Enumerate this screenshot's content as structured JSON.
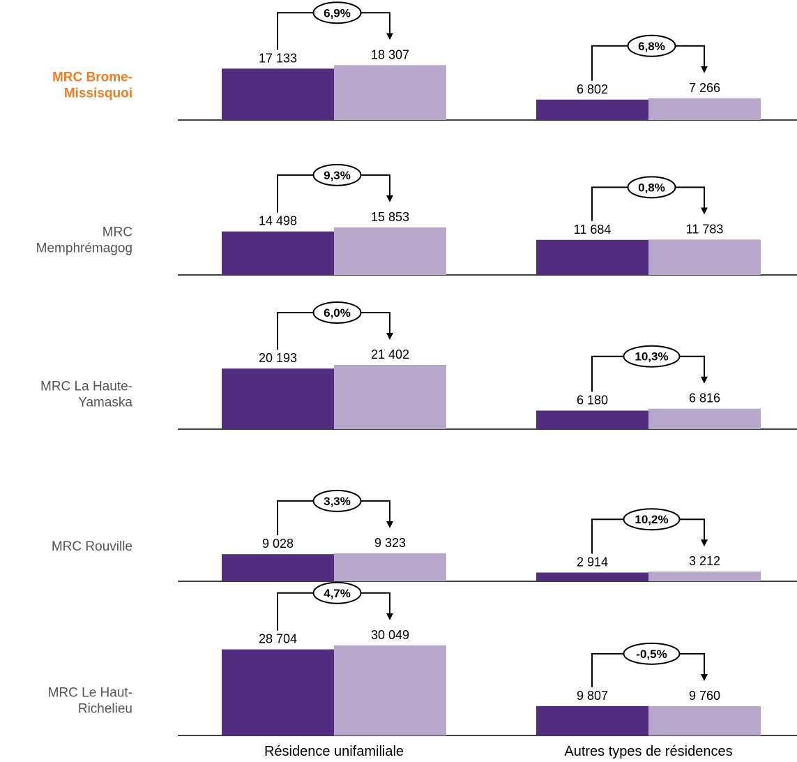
{
  "chart_data": {
    "type": "bar",
    "categories": [
      "Résidence unifamiliale",
      "Autres types de résidences"
    ],
    "series_colors": [
      "#522d7f",
      "#b7a8cb"
    ],
    "highlight_color": "#f07d22",
    "label_color": "#555555",
    "panels": [
      {
        "label": "MRC Brome-\nMissisquoi",
        "highlighted": true,
        "groups": [
          {
            "category": "Résidence unifamiliale",
            "values": [
              17133,
              18307
            ],
            "labels": [
              "17 133",
              "18 307"
            ],
            "change": "6,9%"
          },
          {
            "category": "Autres types de résidences",
            "values": [
              6802,
              7266
            ],
            "labels": [
              "6 802",
              "7 266"
            ],
            "change": "6,8%"
          }
        ]
      },
      {
        "label": "MRC\nMemphrémagog",
        "highlighted": false,
        "groups": [
          {
            "category": "Résidence unifamiliale",
            "values": [
              14498,
              15853
            ],
            "labels": [
              "14 498",
              "15 853"
            ],
            "change": "9,3%"
          },
          {
            "category": "Autres types de résidences",
            "values": [
              11684,
              11783
            ],
            "labels": [
              "11 684",
              "11 783"
            ],
            "change": "0,8%"
          }
        ]
      },
      {
        "label": "MRC La Haute-\nYamaska",
        "highlighted": false,
        "groups": [
          {
            "category": "Résidence unifamiliale",
            "values": [
              20193,
              21402
            ],
            "labels": [
              "20 193",
              "21 402"
            ],
            "change": "6,0%"
          },
          {
            "category": "Autres types de résidences",
            "values": [
              6180,
              6816
            ],
            "labels": [
              "6 180",
              "6 816"
            ],
            "change": "10,3%"
          }
        ]
      },
      {
        "label": "MRC Rouville",
        "highlighted": false,
        "groups": [
          {
            "category": "Résidence unifamiliale",
            "values": [
              9028,
              9323
            ],
            "labels": [
              "9 028",
              "9 323"
            ],
            "change": "3,3%"
          },
          {
            "category": "Autres types de résidences",
            "values": [
              2914,
              3212
            ],
            "labels": [
              "2 914",
              "3 212"
            ],
            "change": "10,2%"
          }
        ]
      },
      {
        "label": "MRC Le Haut-\nRichelieu",
        "highlighted": false,
        "groups": [
          {
            "category": "Résidence unifamiliale",
            "values": [
              28704,
              30049
            ],
            "labels": [
              "28 704",
              "30 049"
            ],
            "change": "4,7%"
          },
          {
            "category": "Autres types de résidences",
            "values": [
              9807,
              9760
            ],
            "labels": [
              "9 807",
              "9 760"
            ],
            "change": "-0,5%"
          }
        ]
      }
    ]
  }
}
